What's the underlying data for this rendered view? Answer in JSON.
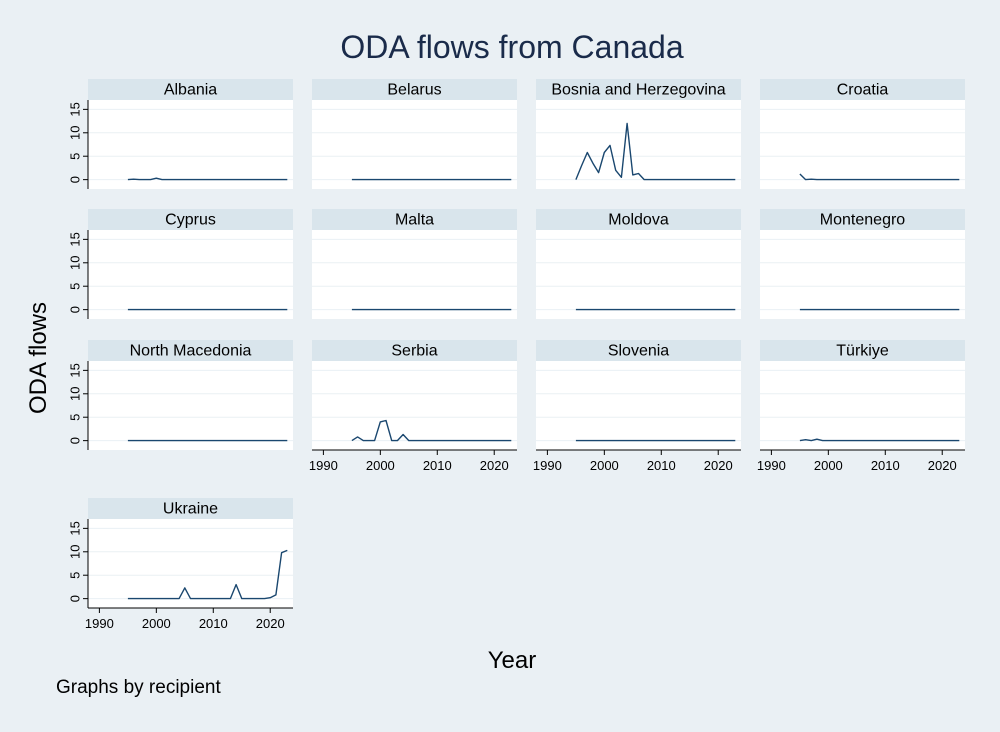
{
  "title": "ODA flows from Canada",
  "ylabel": "ODA flows",
  "xlabel": "Year",
  "note": "Graphs by recipient",
  "colors": {
    "background": "#eaf0f4",
    "panel": "#ffffff",
    "strip": "#d9e5ec",
    "line": "#1a476f",
    "grid": "#eaf0f4",
    "text": "#1a2b4a"
  },
  "chart_data": {
    "type": "line",
    "facet_by": "recipient",
    "columns": 4,
    "xlim": [
      1988,
      2024
    ],
    "ylim": [
      -2,
      17
    ],
    "xticks": [
      1990,
      2000,
      2010,
      2020
    ],
    "yticks": [
      0,
      5,
      10,
      15
    ],
    "x": [
      1995,
      1996,
      1997,
      1998,
      1999,
      2000,
      2001,
      2002,
      2003,
      2004,
      2005,
      2006,
      2007,
      2008,
      2009,
      2010,
      2011,
      2012,
      2013,
      2014,
      2015,
      2016,
      2017,
      2018,
      2019,
      2020,
      2021,
      2022,
      2023
    ],
    "series": [
      {
        "name": "Albania",
        "values": [
          0,
          0.1,
          0,
          0,
          0,
          0.3,
          0,
          0,
          0,
          0,
          0,
          0,
          0,
          0,
          0,
          0,
          0,
          0,
          0,
          0,
          0,
          0,
          0,
          0,
          0,
          0,
          0,
          0,
          0
        ]
      },
      {
        "name": "Belarus",
        "values": [
          0,
          0,
          0,
          0,
          0,
          0,
          0,
          0,
          0,
          0,
          0,
          0,
          0,
          0,
          0,
          0,
          0,
          0,
          0,
          0,
          0,
          0,
          0,
          0,
          0,
          0,
          0,
          0,
          0
        ]
      },
      {
        "name": "Bosnia and Herzegovina",
        "values": [
          0,
          3,
          5.8,
          3.5,
          1.5,
          5.8,
          7.3,
          2,
          0.5,
          12,
          1,
          1.3,
          0,
          0,
          0,
          0,
          0,
          0,
          0,
          0,
          0,
          0,
          0,
          0,
          0,
          0,
          0,
          0,
          0
        ]
      },
      {
        "name": "Croatia",
        "values": [
          1.2,
          0,
          0.1,
          0,
          0,
          0,
          0,
          0,
          0,
          0,
          0,
          0,
          0,
          0,
          0,
          0,
          0,
          0,
          0,
          0,
          0,
          0,
          0,
          0,
          0,
          0,
          0,
          0,
          0
        ]
      },
      {
        "name": "Cyprus",
        "values": [
          0,
          0,
          0,
          0,
          0,
          0,
          0,
          0,
          0,
          0,
          0,
          0,
          0,
          0,
          0,
          0,
          0,
          0,
          0,
          0,
          0,
          0,
          0,
          0,
          0,
          0,
          0,
          0,
          0
        ]
      },
      {
        "name": "Malta",
        "values": [
          0,
          0,
          0,
          0,
          0,
          0,
          0,
          0,
          0,
          0,
          0,
          0,
          0,
          0,
          0,
          0,
          0,
          0,
          0,
          0,
          0,
          0,
          0,
          0,
          0,
          0,
          0,
          0,
          0
        ]
      },
      {
        "name": "Moldova",
        "values": [
          0,
          0,
          0,
          0,
          0,
          0,
          0,
          0,
          0,
          0,
          0,
          0,
          0,
          0,
          0,
          0,
          0,
          0,
          0,
          0,
          0,
          0,
          0,
          0,
          0,
          0,
          0,
          0,
          0
        ]
      },
      {
        "name": "Montenegro",
        "values": [
          0,
          0,
          0,
          0,
          0,
          0,
          0,
          0,
          0,
          0,
          0,
          0,
          0,
          0,
          0,
          0,
          0,
          0,
          0,
          0,
          0,
          0,
          0,
          0,
          0,
          0,
          0,
          0,
          0
        ]
      },
      {
        "name": "North Macedonia",
        "values": [
          0,
          0,
          0,
          0,
          0,
          0,
          0,
          0,
          0,
          0,
          0,
          0,
          0,
          0,
          0,
          0,
          0,
          0,
          0,
          0,
          0,
          0,
          0,
          0,
          0,
          0,
          0,
          0,
          0
        ]
      },
      {
        "name": "Serbia",
        "values": [
          0,
          0.8,
          0,
          0,
          0,
          4,
          4.3,
          0,
          0,
          1.3,
          0,
          0,
          0,
          0,
          0,
          0,
          0,
          0,
          0,
          0,
          0,
          0,
          0,
          0,
          0,
          0,
          0,
          0,
          0
        ]
      },
      {
        "name": "Slovenia",
        "values": [
          0,
          0,
          0,
          0,
          0,
          0,
          0,
          0,
          0,
          0,
          0,
          0,
          0,
          0,
          0,
          0,
          0,
          0,
          0,
          0,
          0,
          0,
          0,
          0,
          0,
          0,
          0,
          0,
          0
        ]
      },
      {
        "name": "Türkiye",
        "values": [
          0,
          0.2,
          0,
          0.3,
          0,
          0,
          0,
          0,
          0,
          0,
          0,
          0,
          0,
          0,
          0,
          0,
          0,
          0,
          0,
          0,
          0,
          0,
          0,
          0,
          0,
          0,
          0,
          0,
          0
        ]
      },
      {
        "name": "Ukraine",
        "values": [
          0,
          0,
          0,
          0,
          0,
          0,
          0,
          0,
          0,
          0,
          2.3,
          0,
          0,
          0,
          0,
          0,
          0,
          0,
          0,
          3,
          0,
          0,
          0,
          0,
          0,
          0.2,
          0.8,
          9.8,
          10.3
        ]
      }
    ],
    "x_axis_shown_on": [
      "Serbia",
      "Slovenia",
      "Türkiye",
      "Ukraine"
    ],
    "y_axis_shown_on": [
      "Albania",
      "Cyprus",
      "North Macedonia",
      "Ukraine"
    ]
  }
}
